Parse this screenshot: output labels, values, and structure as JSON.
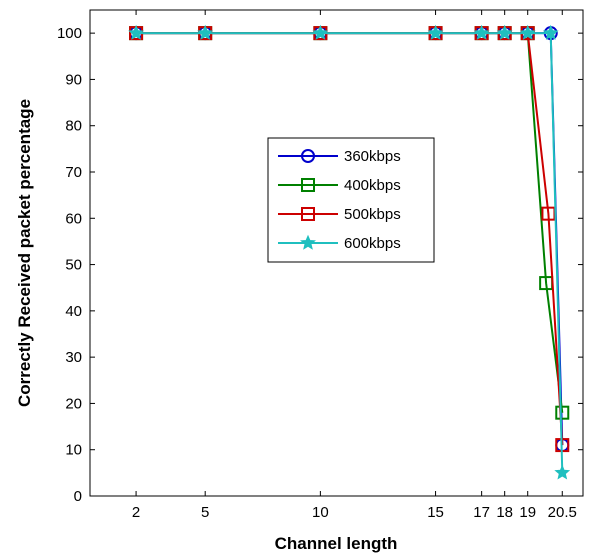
{
  "chart_data": {
    "type": "line",
    "title": "",
    "xlabel": "Channel length",
    "ylabel": "Correctly Received packet percentage",
    "xlim": [
      0,
      21.4
    ],
    "ylim": [
      0,
      105
    ],
    "x_ticks": [
      2,
      5,
      10,
      15,
      17,
      18,
      19,
      20.5
    ],
    "x_tick_labels": [
      "2",
      "5",
      "10",
      "15",
      "17",
      "18",
      "19",
      "20.5"
    ],
    "y_ticks": [
      0,
      10,
      20,
      30,
      40,
      50,
      60,
      70,
      80,
      90,
      100
    ],
    "grid": false,
    "legend_position": "center",
    "series": [
      {
        "name": "360kbps",
        "color": "#0000cc",
        "marker": "circle",
        "x": [
          2,
          5,
          10,
          15,
          17,
          18,
          19,
          20,
          20.5
        ],
        "y": [
          100,
          100,
          100,
          100,
          100,
          100,
          100,
          100,
          11
        ]
      },
      {
        "name": "400kbps",
        "color": "#008000",
        "marker": "square",
        "x": [
          2,
          5,
          10,
          15,
          17,
          18,
          19,
          19.8,
          20.5
        ],
        "y": [
          100,
          100,
          100,
          100,
          100,
          100,
          100,
          46,
          18
        ]
      },
      {
        "name": "500kbps",
        "color": "#cc0000",
        "marker": "square",
        "x": [
          2,
          5,
          10,
          15,
          17,
          18,
          19,
          19.9,
          20.5
        ],
        "y": [
          100,
          100,
          100,
          100,
          100,
          100,
          100,
          61,
          11
        ]
      },
      {
        "name": "600kbps",
        "color": "#1fbfbf",
        "marker": "star",
        "x": [
          2,
          5,
          10,
          15,
          17,
          18,
          19,
          20,
          20.5
        ],
        "y": [
          100,
          100,
          100,
          100,
          100,
          100,
          100,
          100,
          5
        ]
      }
    ]
  }
}
